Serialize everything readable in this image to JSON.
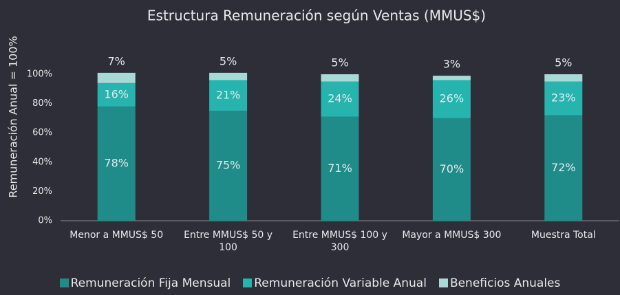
{
  "chart_data": {
    "type": "stacked_bar",
    "title": "Estructura Remuneración según Ventas (MMUS$)",
    "y_label": "Remuneración Anual = 100%",
    "categories": [
      "Menor a MMUS$ 50",
      "Entre MMUS$ 50 y 100",
      "Entre MMUS$ 100 y 300",
      "Mayor a MMUS$ 300",
      "Muestra Total"
    ],
    "series": [
      {
        "name": "Remuneración Fija Mensual",
        "color": "#1f8c8a",
        "values": [
          78,
          75,
          71,
          70,
          72
        ],
        "value_labels": [
          "78%",
          "75%",
          "71%",
          "70%",
          "72%"
        ]
      },
      {
        "name": "Remuneración Variable Anual",
        "color": "#27b3ae",
        "values": [
          16,
          21,
          24,
          26,
          23
        ],
        "value_labels": [
          "16%",
          "21%",
          "24%",
          "26%",
          "23%"
        ]
      },
      {
        "name": "Beneficios Anuales",
        "color": "#a9d9d6",
        "values": [
          7,
          5,
          5,
          3,
          5
        ],
        "value_labels": [
          "7%",
          "5%",
          "5%",
          "3%",
          "5%"
        ]
      }
    ],
    "ylim": [
      0,
      100
    ],
    "yticks": [
      {
        "value": 0,
        "label": "0%"
      },
      {
        "value": 20,
        "label": "20%"
      },
      {
        "value": 40,
        "label": "40%"
      },
      {
        "value": 60,
        "label": "60%"
      },
      {
        "value": 80,
        "label": "80%"
      },
      {
        "value": 100,
        "label": "100%"
      }
    ],
    "legend": "bottom"
  }
}
